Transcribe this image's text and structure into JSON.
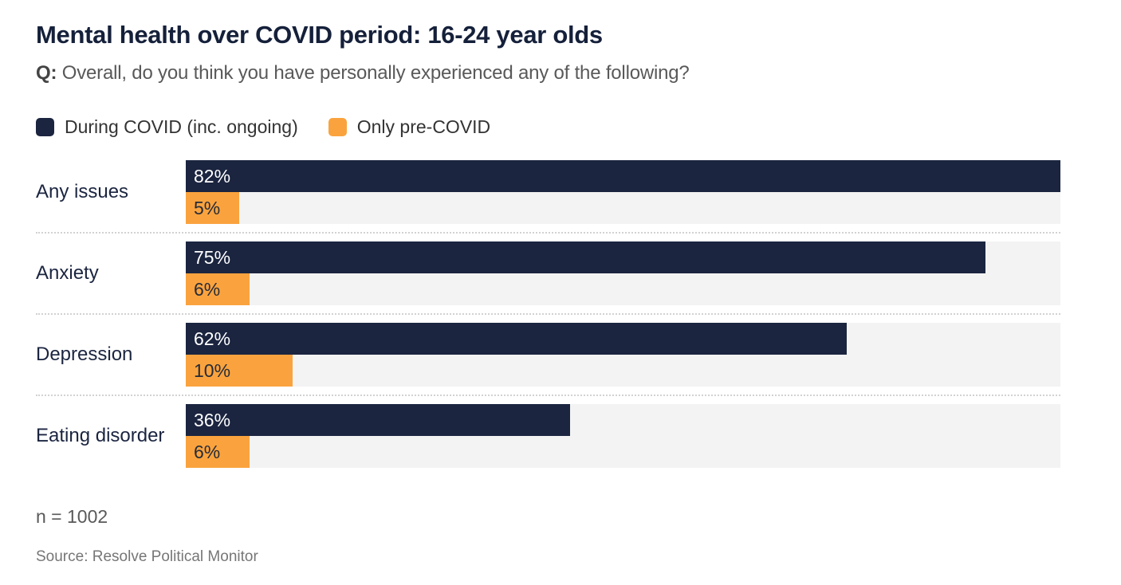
{
  "chart_data": {
    "type": "bar",
    "orientation": "horizontal",
    "title": "Mental health over COVID period: 16-24 year olds",
    "subtitle_prefix": "Q:",
    "subtitle_text": "Overall, do you think you have personally experienced any of the following?",
    "categories": [
      "Any issues",
      "Anxiety",
      "Depression",
      "Eating disorder"
    ],
    "series": [
      {
        "name": "During COVID (inc. ongoing)",
        "color": "#1b2540",
        "values": [
          82,
          75,
          62,
          36
        ]
      },
      {
        "name": "Only pre-COVID",
        "color": "#faa33e",
        "values": [
          5,
          6,
          10,
          6
        ]
      }
    ],
    "value_suffix": "%",
    "scale_max": 82,
    "legend_position": "top",
    "grid": false,
    "track_color": "#f3f3f3",
    "note": "n = 1002",
    "source": "Source: Resolve Political Monitor"
  }
}
